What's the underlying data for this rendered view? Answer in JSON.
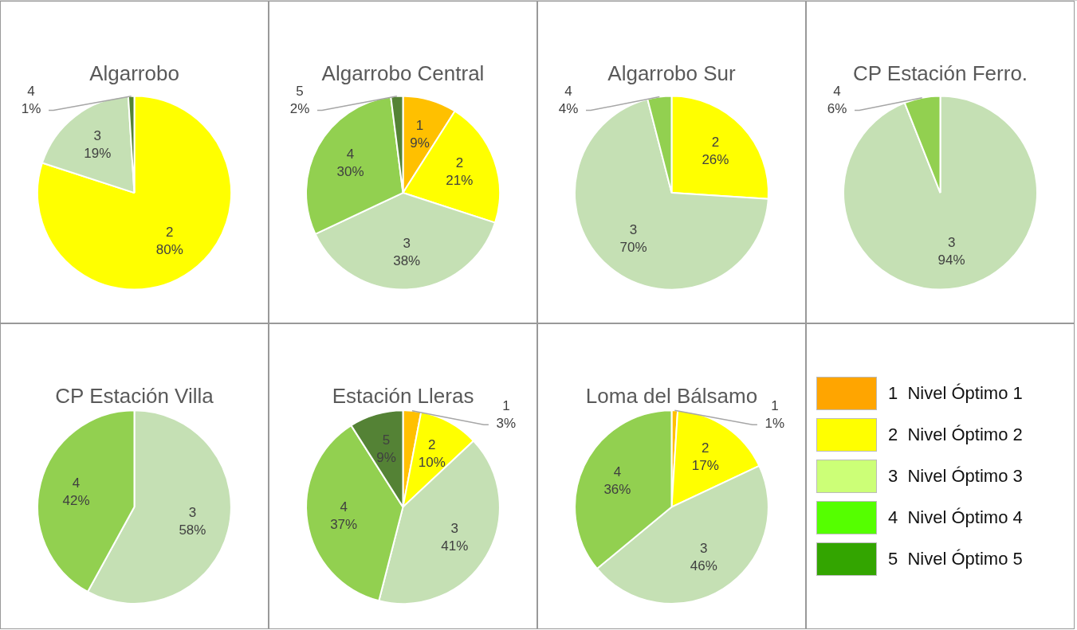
{
  "chart_data": [
    {
      "type": "pie",
      "title": "Algarrobo",
      "categories": [
        "2",
        "3",
        "4"
      ],
      "values": [
        80,
        19,
        1
      ],
      "value_labels": [
        "80%",
        "19%",
        "1%"
      ],
      "colors": [
        "#ffff00",
        "#c5e0b4",
        "#548235"
      ]
    },
    {
      "type": "pie",
      "title": "Algarrobo Central",
      "categories": [
        "1",
        "2",
        "3",
        "4",
        "5"
      ],
      "values": [
        9,
        21,
        38,
        30,
        2
      ],
      "value_labels": [
        "9%",
        "21%",
        "38%",
        "30%",
        "2%"
      ],
      "colors": [
        "#ffc000",
        "#ffff00",
        "#c5e0b4",
        "#92d050",
        "#548235"
      ]
    },
    {
      "type": "pie",
      "title": "Algarrobo Sur",
      "categories": [
        "2",
        "3",
        "4"
      ],
      "values": [
        26,
        70,
        4
      ],
      "value_labels": [
        "26%",
        "70%",
        "4%"
      ],
      "colors": [
        "#ffff00",
        "#c5e0b4",
        "#92d050"
      ]
    },
    {
      "type": "pie",
      "title": "CP Estación Ferro.",
      "categories": [
        "3",
        "4"
      ],
      "values": [
        94,
        6
      ],
      "value_labels": [
        "94%",
        "6%"
      ],
      "colors": [
        "#c5e0b4",
        "#92d050"
      ]
    },
    {
      "type": "pie",
      "title": "CP Estación Villa",
      "categories": [
        "3",
        "4"
      ],
      "values": [
        58,
        42
      ],
      "value_labels": [
        "58%",
        "42%"
      ],
      "colors": [
        "#c5e0b4",
        "#92d050"
      ]
    },
    {
      "type": "pie",
      "title": "Estación Lleras",
      "categories": [
        "1",
        "2",
        "3",
        "4",
        "5"
      ],
      "values": [
        3,
        10,
        41,
        37,
        9
      ],
      "value_labels": [
        "3%",
        "10%",
        "41%",
        "37%",
        "9%"
      ],
      "colors": [
        "#ffc000",
        "#ffff00",
        "#c5e0b4",
        "#92d050",
        "#548235"
      ]
    },
    {
      "type": "pie",
      "title": "Loma del Bálsamo",
      "categories": [
        "1",
        "2",
        "3",
        "4"
      ],
      "values": [
        1,
        17,
        46,
        36
      ],
      "value_labels": [
        "1%",
        "17%",
        "46%",
        "36%"
      ],
      "colors": [
        "#ffc000",
        "#ffff00",
        "#c5e0b4",
        "#92d050"
      ]
    },
    {
      "type": "other",
      "categories": [
        "1  Nivel Óptimo 1",
        "2  Nivel Óptimo 2",
        "3  Nivel Óptimo 3",
        "4  Nivel Óptimo 4",
        "5  Nivel Óptimo 5"
      ],
      "colors": [
        "#ffa500",
        "#ffff00",
        "#ccff77",
        "#55ff00",
        "#33a500"
      ]
    }
  ]
}
